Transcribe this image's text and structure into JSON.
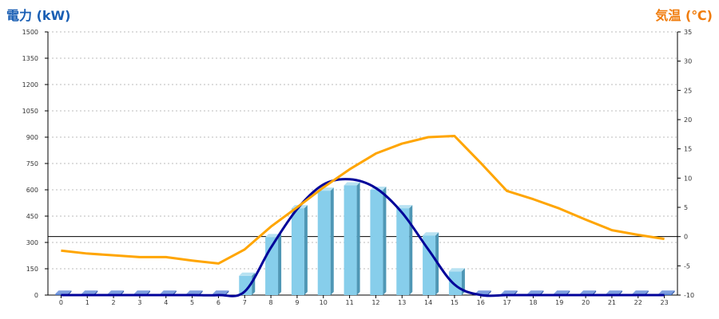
{
  "chart_data": {
    "type": "bar",
    "left_axis_title": "電力 (kW)",
    "right_axis_title": "気温 (℃)",
    "categories": [
      "0",
      "1",
      "2",
      "3",
      "4",
      "5",
      "6",
      "7",
      "8",
      "9",
      "10",
      "11",
      "12",
      "13",
      "14",
      "15",
      "16",
      "17",
      "18",
      "19",
      "20",
      "21",
      "22",
      "23"
    ],
    "left_ticks": [
      "0",
      "150",
      "300",
      "450",
      "600",
      "750",
      "900",
      "1050",
      "1200",
      "1350",
      "1500"
    ],
    "right_ticks": [
      "-10",
      "-5",
      "0",
      "5",
      "10",
      "15",
      "20",
      "25",
      "30",
      "35"
    ],
    "ylim_left": [
      0,
      1500
    ],
    "ylim_right": [
      -10,
      35
    ],
    "grid": true,
    "series": [
      {
        "kind": "bar",
        "axis": "left",
        "values": [
          8,
          8,
          8,
          8,
          8,
          8,
          8,
          110,
          330,
          495,
          595,
          625,
          600,
          495,
          340,
          135,
          8,
          8,
          8,
          8,
          8,
          8,
          8,
          8
        ]
      },
      {
        "kind": "line",
        "axis": "left",
        "values": [
          0,
          0,
          0,
          0,
          0,
          0,
          0,
          20,
          270,
          490,
          630,
          660,
          610,
          470,
          260,
          60,
          0,
          0,
          0,
          0,
          0,
          0,
          0,
          0
        ]
      },
      {
        "kind": "line",
        "axis": "right",
        "values": [
          -2.4,
          -2.9,
          -3.2,
          -3.5,
          -3.5,
          -4.1,
          -4.6,
          -2.2,
          1.7,
          5.0,
          8.4,
          11.5,
          14.2,
          15.9,
          17.0,
          17.2,
          12.6,
          7.8,
          6.4,
          4.8,
          2.9,
          1.1,
          0.3,
          -0.4
        ]
      }
    ],
    "colors": {
      "bar_front": "#87ceeb",
      "bar_side": "#4f97b5",
      "bar_top": "#b8e2f2",
      "small_bar": "#4a78d0",
      "power_line": "#000099",
      "temp_line": "#ffa500",
      "left_title": "#1a5fb4",
      "right_title": "#f07c0c",
      "grid": "#bbbbbb",
      "zero_line": "#000000"
    }
  }
}
